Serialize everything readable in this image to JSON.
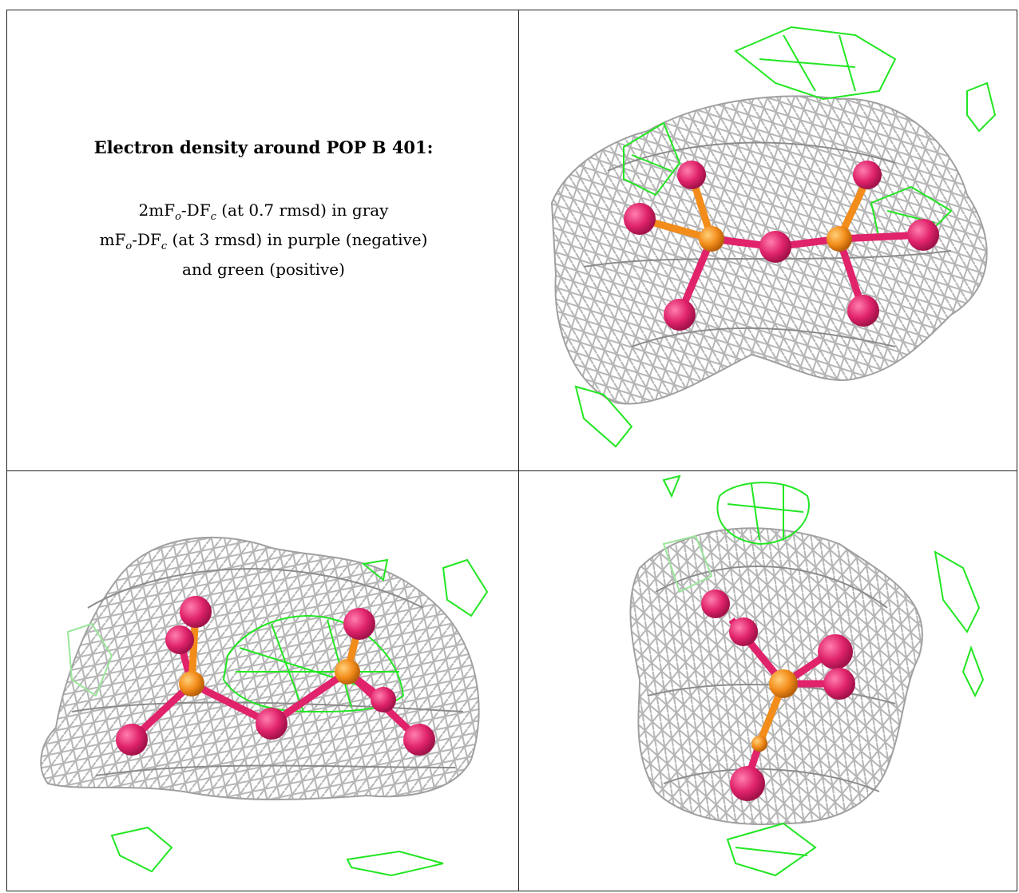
{
  "caption": {
    "title": "Electron density around POP B 401:",
    "line1_a": "2mF",
    "line1_sub1": "o",
    "line1_b": "-DF",
    "line1_sub2": "c",
    "line1_c": " (at 0.7 rmsd) in gray",
    "line2_a": "mF",
    "line2_sub1": "o",
    "line2_b": "-DF",
    "line2_sub2": "c",
    "line2_c": " (at 3 rmsd) in purple (negative)",
    "line3": "and green (positive)"
  },
  "colors": {
    "gray_mesh": "#b0b0b0",
    "green_mesh": "#22e622",
    "phosphorus": "#f28c1a",
    "oxygen": "#e0236b",
    "border": "#222222"
  }
}
